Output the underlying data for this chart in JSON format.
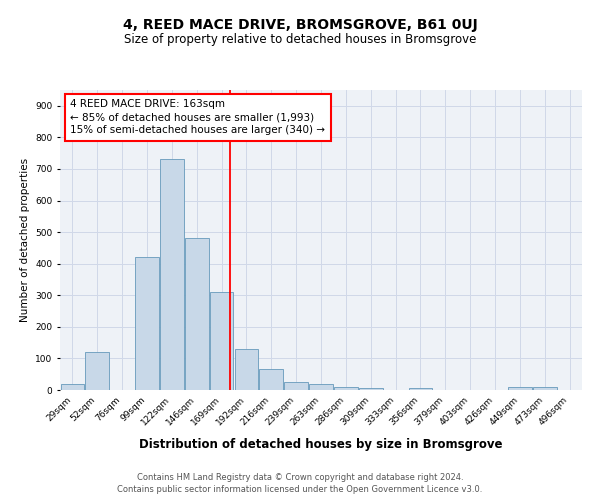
{
  "title": "4, REED MACE DRIVE, BROMSGROVE, B61 0UJ",
  "subtitle": "Size of property relative to detached houses in Bromsgrove",
  "xlabel": "Distribution of detached houses by size in Bromsgrove",
  "ylabel": "Number of detached properties",
  "footnote1": "Contains HM Land Registry data © Crown copyright and database right 2024.",
  "footnote2": "Contains public sector information licensed under the Open Government Licence v3.0.",
  "bar_labels": [
    "29sqm",
    "52sqm",
    "76sqm",
    "99sqm",
    "122sqm",
    "146sqm",
    "169sqm",
    "192sqm",
    "216sqm",
    "239sqm",
    "263sqm",
    "286sqm",
    "309sqm",
    "333sqm",
    "356sqm",
    "379sqm",
    "403sqm",
    "426sqm",
    "449sqm",
    "473sqm",
    "496sqm"
  ],
  "bar_values": [
    20,
    120,
    0,
    420,
    730,
    480,
    310,
    130,
    65,
    25,
    20,
    10,
    5,
    0,
    5,
    0,
    0,
    0,
    8,
    10,
    0
  ],
  "bar_color": "#c8d8e8",
  "bar_edge_color": "#6699bb",
  "ylim": [
    0,
    950
  ],
  "yticks": [
    0,
    100,
    200,
    300,
    400,
    500,
    600,
    700,
    800,
    900
  ],
  "red_line_index": 6.35,
  "annotation_box_text": "4 REED MACE DRIVE: 163sqm\n← 85% of detached houses are smaller (1,993)\n15% of semi-detached houses are larger (340) →",
  "grid_color": "#d0d8e8",
  "background_color": "#eef2f7",
  "title_fontsize": 10,
  "subtitle_fontsize": 8.5,
  "ylabel_fontsize": 7.5,
  "xlabel_fontsize": 8.5,
  "tick_fontsize": 6.5,
  "footnote_fontsize": 6.0,
  "annotation_fontsize": 7.5
}
